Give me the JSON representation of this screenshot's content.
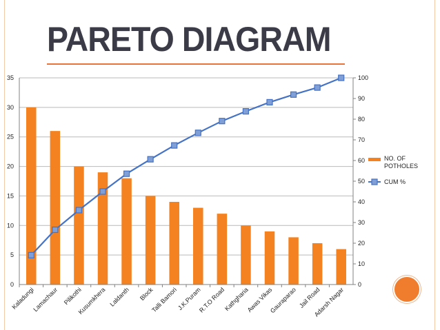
{
  "title": "PARETO DIAGRAM",
  "colors": {
    "bar": "#f58220",
    "line": "#4472c4",
    "marker_fill": "#7f9fd6",
    "title": "#3b3b48",
    "accent": "#e8743b",
    "grid": "#b9b9b9"
  },
  "chart_data": {
    "type": "bar",
    "categories": [
      "Kaladungi",
      "Lamachaur",
      "Pilikothi",
      "Kusumkhera",
      "Laldanth",
      "Block",
      "Talli Bamori",
      "J.K.Puram",
      "R.T.O Road",
      "Kathgharia",
      "Awas Vikas",
      "Gauraparao",
      "Jail Road",
      "Adarsh Nagar"
    ],
    "series": [
      {
        "name": "NO. OF POTHOLES",
        "type": "bar",
        "axis": "left",
        "values": [
          30,
          26,
          20,
          19,
          18,
          15,
          14,
          13,
          12,
          10,
          9,
          8,
          7,
          6
        ]
      },
      {
        "name": "CUM  %",
        "type": "line",
        "axis": "right",
        "values": [
          14.2,
          26.5,
          36.0,
          45.0,
          53.6,
          60.6,
          67.3,
          73.4,
          79.1,
          83.8,
          88.2,
          91.9,
          95.3,
          100.0
        ]
      }
    ],
    "left_axis": {
      "ylim": [
        0,
        35
      ],
      "ticks": [
        "0",
        "5",
        "10",
        "15",
        "20",
        "25",
        "30",
        "35"
      ]
    },
    "right_axis": {
      "ylim": [
        0,
        100
      ],
      "ticks": [
        "0",
        "10",
        "20",
        "30",
        "40",
        "50",
        "60",
        "70",
        "80",
        "90",
        "100"
      ]
    },
    "grid": true,
    "legend_position": "right"
  }
}
